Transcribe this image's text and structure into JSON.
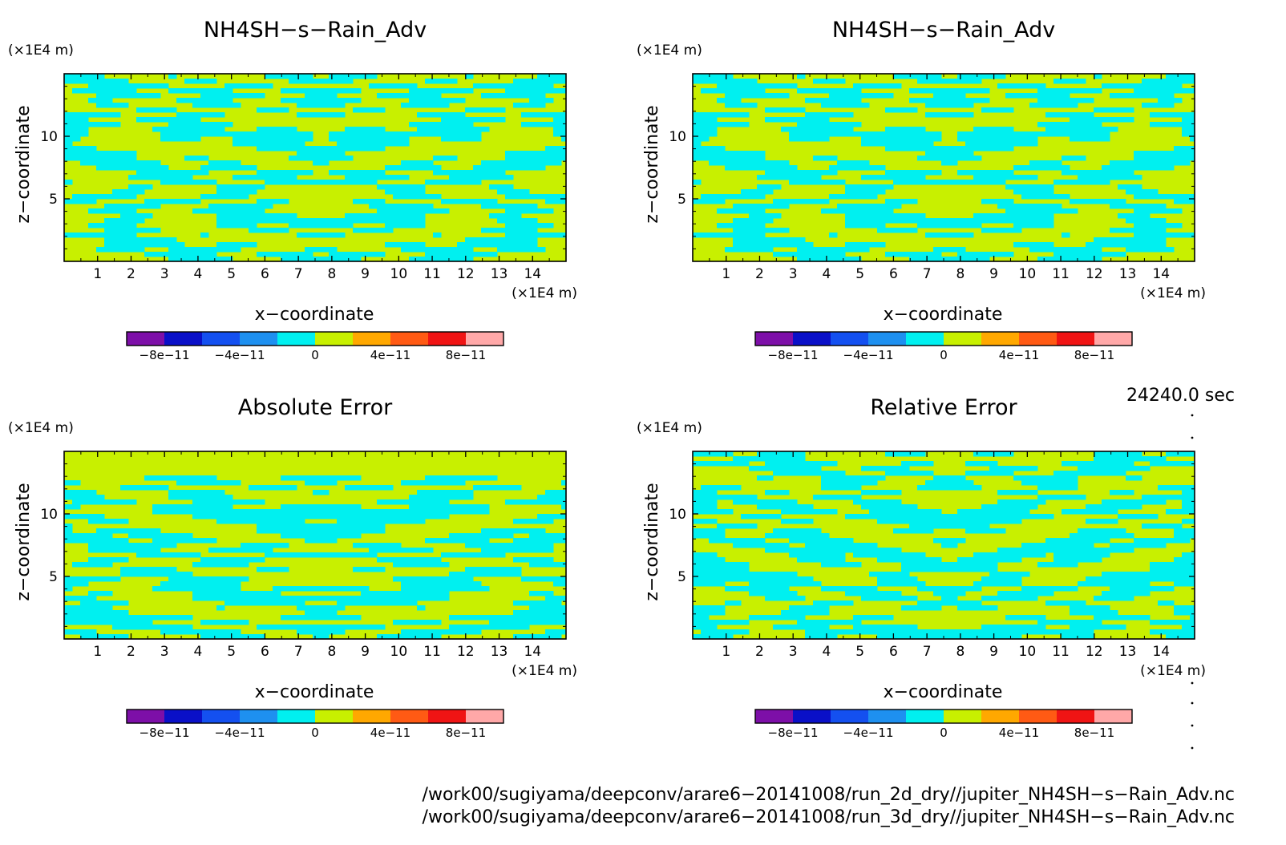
{
  "chart_data": [
    {
      "type": "heatmap",
      "title": "NH4SH−s−Rain_Adv",
      "xlabel": "x−coordinate",
      "ylabel": "z−coordinate",
      "x_unit": "(×1E4 m)",
      "y_unit": "(×1E4 m)",
      "x_ticks": [
        "1",
        "2",
        "3",
        "4",
        "5",
        "6",
        "7",
        "8",
        "9",
        "10",
        "11",
        "12",
        "13",
        "14"
      ],
      "y_ticks": [
        "5",
        "10"
      ],
      "xlim": [
        0,
        15
      ],
      "ylim": [
        0,
        15
      ],
      "pattern_seed": 3,
      "colorbar": {
        "ticks": [
          "−8e−11",
          "−4e−11",
          "0",
          "4e−11",
          "8e−11"
        ],
        "range": [
          -1e-10,
          1e-10
        ]
      }
    },
    {
      "type": "heatmap",
      "title": "NH4SH−s−Rain_Adv",
      "xlabel": "x−coordinate",
      "ylabel": "z−coordinate",
      "x_unit": "(×1E4 m)",
      "y_unit": "(×1E4 m)",
      "x_ticks": [
        "1",
        "2",
        "3",
        "4",
        "5",
        "6",
        "7",
        "8",
        "9",
        "10",
        "11",
        "12",
        "13",
        "14"
      ],
      "y_ticks": [
        "5",
        "10"
      ],
      "xlim": [
        0,
        15
      ],
      "ylim": [
        0,
        15
      ],
      "pattern_seed": 3,
      "colorbar": {
        "ticks": [
          "−8e−11",
          "−4e−11",
          "0",
          "4e−11",
          "8e−11"
        ],
        "range": [
          -1e-10,
          1e-10
        ]
      }
    },
    {
      "type": "heatmap",
      "title": "Absolute Error",
      "xlabel": "x−coordinate",
      "ylabel": "z−coordinate",
      "x_unit": "(×1E4 m)",
      "y_unit": "(×1E4 m)",
      "x_ticks": [
        "1",
        "2",
        "3",
        "4",
        "5",
        "6",
        "7",
        "8",
        "9",
        "10",
        "11",
        "12",
        "13",
        "14"
      ],
      "y_ticks": [
        "5",
        "10"
      ],
      "xlim": [
        0,
        15
      ],
      "ylim": [
        0,
        15
      ],
      "pattern_seed": 11,
      "colorbar": {
        "ticks": [
          "−8e−11",
          "−4e−11",
          "0",
          "4e−11",
          "8e−11"
        ],
        "range": [
          -1e-10,
          1e-10
        ]
      }
    },
    {
      "type": "heatmap",
      "title": "Relative Error",
      "xlabel": "x−coordinate",
      "ylabel": "z−coordinate",
      "x_unit": "(×1E4 m)",
      "y_unit": "(×1E4 m)",
      "x_ticks": [
        "1",
        "2",
        "3",
        "4",
        "5",
        "6",
        "7",
        "8",
        "9",
        "10",
        "11",
        "12",
        "13",
        "14"
      ],
      "y_ticks": [
        "5",
        "10"
      ],
      "xlim": [
        0,
        15
      ],
      "ylim": [
        0,
        15
      ],
      "pattern_seed": 29,
      "colorbar": {
        "ticks": [
          "−8e−11",
          "−4e−11",
          "0",
          "4e−11",
          "8e−11"
        ],
        "range": [
          -1e-10,
          1e-10
        ]
      }
    }
  ],
  "colors": {
    "palette": [
      "#7d0fa8",
      "#0a10c8",
      "#1450f0",
      "#1e90f0",
      "#00f0f0",
      "#c8f000",
      "#ffa800",
      "#ff5a14",
      "#f01414",
      "#ffa8a8"
    ],
    "field_low": "#00f0f0",
    "field_high": "#c8f000"
  },
  "time_label": "24240.0 sec",
  "file_paths": [
    "/work00/sugiyama/deepconv/arare6−20141008/run_2d_dry//jupiter_NH4SH−s−Rain_Adv.nc",
    "/work00/sugiyama/deepconv/arare6−20141008/run_3d_dry//jupiter_NH4SH−s−Rain_Adv.nc"
  ]
}
